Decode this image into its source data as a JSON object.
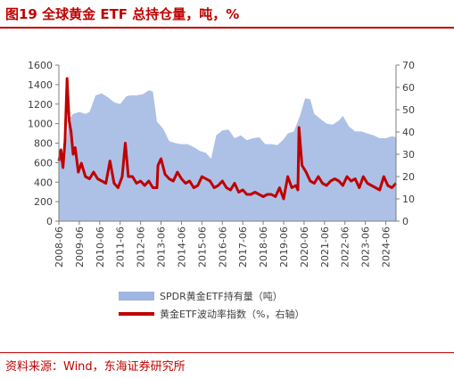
{
  "title": "图19  全球黄金 ETF 总持仓量，吨，%",
  "source": "资料来源：Wind，东海证券研究所",
  "chart_data": {
    "type": "area+line",
    "x_tick_labels": [
      "2008-06",
      "2009-06",
      "2010-06",
      "2011-06",
      "2012-06",
      "2013-06",
      "2014-06",
      "2015-06",
      "2016-06",
      "2017-06",
      "2018-06",
      "2019-06",
      "2020-06",
      "2021-06",
      "2022-06",
      "2023-06",
      "2024-06"
    ],
    "y_left_ticks": [
      "0",
      "200",
      "400",
      "600",
      "800",
      "1000",
      "1200",
      "1400",
      "1600"
    ],
    "y_right_ticks": [
      "0",
      "10",
      "20",
      "30",
      "40",
      "50",
      "60",
      "70"
    ],
    "y_left_lim": [
      0,
      1600
    ],
    "y_right_lim": [
      0,
      70
    ],
    "series": [
      {
        "name": "SPDR黄金ETF持有量（吨）",
        "axis": "left",
        "kind": "area",
        "color": "#9fb6e3",
        "x": [
          2008.5,
          2008.8,
          2009.0,
          2009.2,
          2009.5,
          2009.8,
          2010.0,
          2010.3,
          2010.6,
          2010.9,
          2011.2,
          2011.5,
          2011.8,
          2012.0,
          2012.3,
          2012.6,
          2012.9,
          2013.1,
          2013.3,
          2013.6,
          2013.9,
          2014.2,
          2014.5,
          2014.8,
          2015.1,
          2015.4,
          2015.7,
          2015.95,
          2016.2,
          2016.5,
          2016.8,
          2017.1,
          2017.4,
          2017.7,
          2018.0,
          2018.3,
          2018.6,
          2018.9,
          2019.2,
          2019.5,
          2019.7,
          2020.0,
          2020.3,
          2020.55,
          2020.8,
          2021.0,
          2021.3,
          2021.6,
          2021.9,
          2022.2,
          2022.4,
          2022.7,
          2023.0,
          2023.3,
          2023.6,
          2023.9,
          2024.2,
          2024.5,
          2024.8,
          2025.0
        ],
        "y": [
          620,
          700,
          1050,
          1100,
          1120,
          1100,
          1120,
          1290,
          1310,
          1270,
          1220,
          1200,
          1280,
          1290,
          1290,
          1300,
          1340,
          1330,
          1020,
          950,
          820,
          800,
          790,
          790,
          760,
          720,
          700,
          640,
          880,
          930,
          940,
          850,
          880,
          830,
          850,
          860,
          790,
          790,
          780,
          840,
          900,
          920,
          1080,
          1260,
          1250,
          1100,
          1050,
          1000,
          990,
          1030,
          1080,
          970,
          920,
          920,
          900,
          880,
          850,
          850,
          870,
          860
        ]
      },
      {
        "name": "黄金ETF波动率指数（%，右轴）",
        "axis": "right",
        "kind": "line",
        "color": "#c00000",
        "x": [
          2008.5,
          2008.6,
          2008.7,
          2008.8,
          2008.9,
          2009.0,
          2009.1,
          2009.2,
          2009.3,
          2009.45,
          2009.6,
          2009.8,
          2010.0,
          2010.2,
          2010.4,
          2010.6,
          2010.8,
          2011.0,
          2011.2,
          2011.4,
          2011.6,
          2011.7,
          2011.75,
          2011.9,
          2012.1,
          2012.3,
          2012.5,
          2012.7,
          2012.9,
          2013.1,
          2013.3,
          2013.35,
          2013.5,
          2013.7,
          2013.9,
          2014.1,
          2014.3,
          2014.5,
          2014.7,
          2014.9,
          2015.1,
          2015.3,
          2015.5,
          2015.7,
          2015.9,
          2016.1,
          2016.3,
          2016.5,
          2016.7,
          2016.9,
          2017.1,
          2017.3,
          2017.5,
          2017.7,
          2017.9,
          2018.1,
          2018.3,
          2018.5,
          2018.7,
          2018.9,
          2019.1,
          2019.3,
          2019.5,
          2019.7,
          2019.9,
          2020.1,
          2020.2,
          2020.25,
          2020.4,
          2020.6,
          2020.8,
          2021.0,
          2021.2,
          2021.4,
          2021.6,
          2021.8,
          2022.0,
          2022.2,
          2022.4,
          2022.6,
          2022.8,
          2023.0,
          2023.2,
          2023.4,
          2023.6,
          2023.8,
          2024.0,
          2024.2,
          2024.4,
          2024.6,
          2024.8,
          2025.0
        ],
        "y": [
          27,
          32,
          24,
          36,
          64,
          45,
          40,
          30,
          33,
          22,
          26,
          20,
          19,
          22,
          19,
          18,
          17,
          27,
          17,
          15,
          20,
          30,
          35,
          20,
          20,
          17,
          18,
          16,
          18,
          15,
          15,
          25,
          28,
          21,
          19,
          18,
          22,
          19,
          17,
          18,
          15,
          16,
          20,
          19,
          18,
          15,
          16,
          18,
          15,
          14,
          17,
          13,
          14,
          12,
          12,
          13,
          12,
          11,
          12,
          12,
          11,
          15,
          10,
          20,
          15,
          16,
          14,
          42,
          25,
          22,
          18,
          17,
          20,
          17,
          16,
          18,
          19,
          18,
          16,
          20,
          18,
          19,
          15,
          20,
          17,
          16,
          15,
          14,
          20,
          16,
          15,
          17
        ]
      }
    ],
    "legend": [
      {
        "label": "SPDR黄金ETF持有量（吨）",
        "color": "#9fb6e3",
        "kind": "bar"
      },
      {
        "label": "黄金ETF波动率指数（%，右轴）",
        "color": "#c00000",
        "kind": "line"
      }
    ],
    "legend_placement": "bottom",
    "grid": false
  }
}
